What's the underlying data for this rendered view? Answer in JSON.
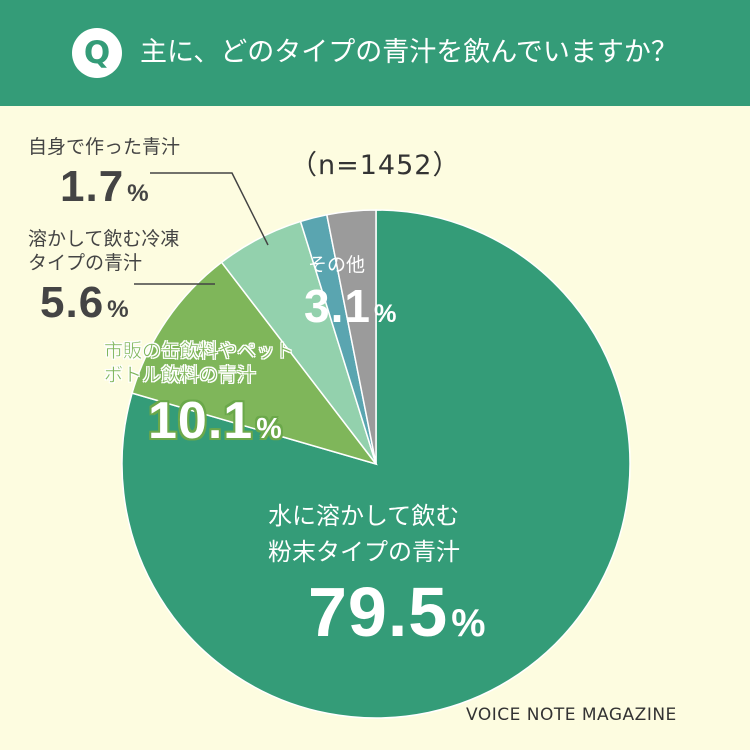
{
  "header": {
    "badge": "Q",
    "question": "主に、どのタイプの青汁を飲んでいますか？"
  },
  "sample_size": "（n=1452）",
  "footer": "VOICE NOTE MAGAZINE",
  "chart_data": {
    "type": "pie",
    "title": "主に、どのタイプの青汁を飲んでいますか？",
    "n": 1452,
    "start": "top (12 o'clock)",
    "direction": "clockwise",
    "unit": "%",
    "slices": [
      {
        "label_lines": [
          "水に溶かして飲む",
          "粉末タイプの青汁"
        ],
        "value": 79.5,
        "value_text": "79.5",
        "color": "#349c78"
      },
      {
        "label_lines": [
          "市販の缶飲料やペット",
          "ボトル飲料の青汁"
        ],
        "value": 10.1,
        "value_text": "10.1",
        "color": "#7fb65a"
      },
      {
        "label_lines": [
          "溶かして飲む冷凍",
          "タイプの青汁"
        ],
        "value": 5.6,
        "value_text": "5.6",
        "color": "#93d1ad"
      },
      {
        "label_lines": [
          "自身で作った青汁"
        ],
        "value": 1.7,
        "value_text": "1.7",
        "color": "#5aa5b0"
      },
      {
        "label_lines": [
          "その他"
        ],
        "value": 3.1,
        "value_text": "3.1",
        "color": "#9b9b9b"
      }
    ]
  }
}
